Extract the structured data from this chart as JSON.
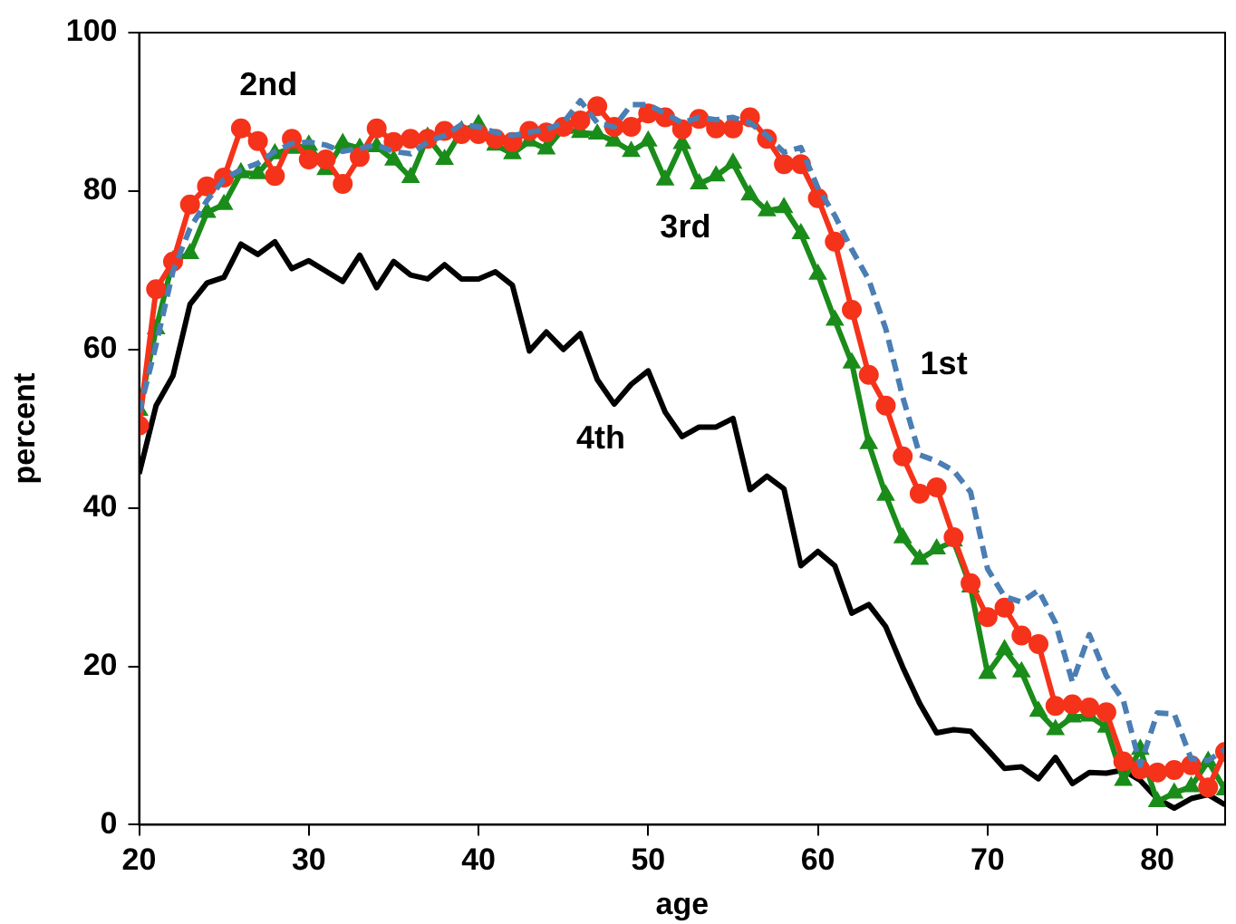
{
  "chart_data": {
    "type": "line",
    "xlabel": "age",
    "ylabel": "percent",
    "x": [
      20,
      21,
      22,
      23,
      24,
      25,
      26,
      27,
      28,
      29,
      30,
      31,
      32,
      33,
      34,
      35,
      36,
      37,
      38,
      39,
      40,
      41,
      42,
      43,
      44,
      45,
      46,
      47,
      48,
      49,
      50,
      51,
      52,
      53,
      54,
      55,
      56,
      57,
      58,
      59,
      60,
      61,
      62,
      63,
      64,
      65,
      66,
      67,
      68,
      69,
      70,
      71,
      72,
      73,
      74,
      75,
      76,
      77,
      78,
      79,
      80,
      81,
      82,
      83,
      84
    ],
    "series": [
      {
        "name": "1st",
        "color": "#4a7eb4",
        "line_style": "dashed",
        "marker": "none",
        "values": [
          52,
          60.6,
          69.9,
          75.3,
          78.8,
          81.5,
          82.7,
          83.5,
          85,
          86,
          86.2,
          85.8,
          85,
          85.4,
          85.8,
          85,
          84.7,
          86.2,
          87,
          88.4,
          88.1,
          87.4,
          87,
          87.4,
          87.8,
          88.6,
          91.4,
          88.6,
          88.1,
          90.9,
          90.9,
          89.8,
          88.6,
          89.3,
          89,
          89.3,
          88.6,
          87,
          84.9,
          85.5,
          80.4,
          76.9,
          72.6,
          68.8,
          62.6,
          54,
          46.7,
          45.9,
          44.7,
          42,
          32.3,
          28.8,
          28.1,
          29.6,
          25.5,
          18,
          24,
          18.8,
          15.7,
          7.5,
          14.1,
          14,
          8.3,
          8.1,
          9.5
        ]
      },
      {
        "name": "2nd",
        "color": "#f5331a",
        "line_style": "solid",
        "marker": "circle",
        "values": [
          50.4,
          67.6,
          71.1,
          78.3,
          80.6,
          81.7,
          87.9,
          86.3,
          81.9,
          86.6,
          84,
          84,
          80.9,
          84.3,
          87.9,
          86.2,
          86.6,
          86.6,
          87.6,
          87.2,
          87.2,
          86.6,
          86.2,
          87.6,
          87.4,
          88.1,
          88.9,
          90.7,
          88.1,
          88.1,
          89.8,
          89.3,
          87.8,
          89.1,
          87.9,
          87.9,
          89.3,
          86.6,
          83.4,
          83.4,
          79.1,
          73.6,
          65,
          56.8,
          52.9,
          46.5,
          41.8,
          42.6,
          36.3,
          30.5,
          26.2,
          27.4,
          23.9,
          22.8,
          15,
          15.2,
          14.8,
          14.2,
          8,
          7,
          6.6,
          6.9,
          7.5,
          4.7,
          9.2
        ]
      },
      {
        "name": "3rd",
        "color": "#1a8c1a",
        "line_style": "solid",
        "marker": "triangle",
        "values": [
          52.3,
          62.6,
          71.2,
          72.1,
          77.3,
          78.3,
          82.3,
          82.2,
          84.7,
          85.4,
          85.8,
          82.7,
          86,
          85.4,
          85.6,
          83.9,
          81.7,
          86.8,
          84,
          87.6,
          88.4,
          85.8,
          84.7,
          86.3,
          85.3,
          87.9,
          87.4,
          87.2,
          86.3,
          85,
          86.3,
          81.4,
          86,
          80.9,
          81.9,
          83.5,
          79.5,
          77.5,
          77.9,
          74.6,
          69.5,
          63.7,
          58.3,
          48.1,
          41.6,
          36.2,
          33.5,
          34.8,
          35.8,
          30,
          19.1,
          22.1,
          19.3,
          14.3,
          12,
          13.6,
          13.7,
          12.3,
          5.6,
          9.5,
          2.9,
          4,
          4.8,
          8,
          4.4
        ]
      },
      {
        "name": "4th",
        "color": "#000000",
        "line_style": "solid",
        "marker": "none",
        "values": [
          44.3,
          52.9,
          56.7,
          65.7,
          68.4,
          69.1,
          73.3,
          72,
          73.6,
          70.2,
          71.2,
          69.9,
          68.6,
          71.9,
          67.8,
          71.1,
          69.4,
          68.9,
          70.7,
          68.9,
          68.9,
          69.8,
          68.1,
          59.8,
          62.2,
          60,
          62,
          56.2,
          53.1,
          55.6,
          57.3,
          52.1,
          49,
          50.2,
          50.2,
          51.3,
          42.3,
          44,
          42.4,
          32.7,
          34.5,
          32.7,
          26.7,
          27.8,
          25,
          19.9,
          15.3,
          11.6,
          12,
          11.8,
          9.5,
          7.1,
          7.3,
          5.8,
          8.5,
          5.2,
          6.6,
          6.5,
          6.9,
          5.6,
          3.3,
          2.1,
          3.3,
          3.8,
          2.5
        ]
      }
    ],
    "xlim": [
      20,
      84
    ],
    "xticks": [
      20,
      30,
      40,
      50,
      60,
      70,
      80
    ],
    "ylim": [
      0,
      100
    ],
    "yticks": [
      0,
      20,
      40,
      60,
      80,
      100
    ],
    "grid": false,
    "legend": false
  }
}
